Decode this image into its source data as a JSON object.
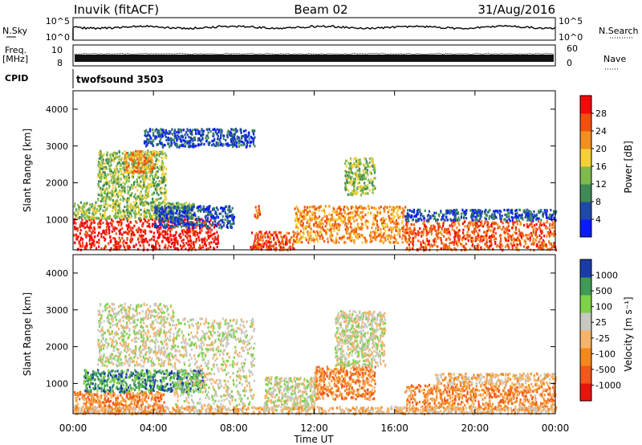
{
  "header": {
    "station": "Inuvik (fitACF)",
    "beam": "Beam 02",
    "date": "31/Aug/2016"
  },
  "status_panel": {
    "nsky_label": "N.Sky",
    "nsky_ticks": [
      "10^5",
      "10^0"
    ],
    "nsearch_label": "N.Search",
    "nsearch_ticks": [
      "10^5",
      "10^0"
    ],
    "freq_label_line1": "Freq.",
    "freq_label_line2": "[MHz]",
    "freq_ticks": [
      "10",
      "8"
    ],
    "nave_label": "Nave",
    "nave_ticks": [
      "60",
      "0"
    ],
    "cpid_label": "CPID",
    "cpid_value": "twofsound 3503"
  },
  "colors": {
    "power": [
      "#0a1cff",
      "#1f49a8",
      "#3f8a55",
      "#7fba4c",
      "#f5cf3a",
      "#f38f20",
      "#f2500f",
      "#f20b0b"
    ],
    "velocity": [
      "#e8140e",
      "#f0581c",
      "#f4881d",
      "#f6b46a",
      "#c8c8c0",
      "#7dd24a",
      "#3f9a58",
      "#1a3ca6"
    ]
  },
  "chart_data": [
    {
      "type": "heatmap",
      "title": "Power",
      "ylabel": "Slant Range [km]",
      "xlabel": "",
      "x_ticks": [
        "00:00",
        "04:00",
        "08:00",
        "12:00",
        "16:00",
        "20:00",
        "00:00"
      ],
      "xlim_hours": [
        0,
        24
      ],
      "y_ticks": [
        1000,
        2000,
        3000,
        4000
      ],
      "ylim_km": [
        180,
        4500
      ],
      "colorbar": {
        "label": "Power [dB]",
        "ticks": [
          "4",
          "8",
          "12",
          "16",
          "20",
          "24",
          "28"
        ],
        "range": [
          0,
          32
        ]
      },
      "regions": [
        {
          "t0": 0.0,
          "t1": 7.2,
          "r0": 200,
          "r1": 1050,
          "level": 7
        },
        {
          "t0": 0.0,
          "t1": 6.0,
          "r0": 1050,
          "r1": 1500,
          "level": 3
        },
        {
          "t0": 1.2,
          "t1": 4.6,
          "r0": 1500,
          "r1": 2900,
          "level": 3
        },
        {
          "t0": 2.5,
          "t1": 4.0,
          "r0": 2300,
          "r1": 2900,
          "level": 5
        },
        {
          "t0": 4.0,
          "t1": 8.0,
          "r0": 800,
          "r1": 1400,
          "level": 1
        },
        {
          "t0": 8.8,
          "t1": 11.0,
          "r0": 200,
          "r1": 700,
          "level": 6
        },
        {
          "t0": 11.0,
          "t1": 16.5,
          "r0": 400,
          "r1": 1400,
          "level": 5
        },
        {
          "t0": 13.5,
          "t1": 15.0,
          "r0": 1700,
          "r1": 2700,
          "level": 3
        },
        {
          "t0": 16.5,
          "t1": 24.0,
          "r0": 200,
          "r1": 1000,
          "level": 6
        },
        {
          "t0": 16.5,
          "t1": 24.0,
          "r0": 1000,
          "r1": 1300,
          "level": 1
        },
        {
          "t0": 3.5,
          "t1": 9.0,
          "r0": 3000,
          "r1": 3500,
          "level": 1
        },
        {
          "t0": 9.0,
          "t1": 9.3,
          "r0": 1000,
          "r1": 1400,
          "level": 6
        }
      ]
    },
    {
      "type": "heatmap",
      "title": "Velocity",
      "ylabel": "Slant Range [km]",
      "xlabel": "Time UT",
      "x_ticks": [
        "00:00",
        "04:00",
        "08:00",
        "12:00",
        "16:00",
        "20:00",
        "00:00"
      ],
      "xlim_hours": [
        0,
        24
      ],
      "y_ticks": [
        1000,
        2000,
        3000,
        4000
      ],
      "ylim_km": [
        180,
        4500
      ],
      "colorbar": {
        "label": "Velocity [m s⁻¹]",
        "ticks": [
          "-1000",
          "-500",
          "-100",
          "-25",
          "25",
          "100",
          "500",
          "1000"
        ],
        "range": [
          -1500,
          1500
        ]
      },
      "regions": [
        {
          "t0": 0.0,
          "t1": 4.5,
          "r0": 200,
          "r1": 800,
          "level": 2
        },
        {
          "t0": 0.5,
          "t1": 6.5,
          "r0": 800,
          "r1": 1400,
          "level": 6
        },
        {
          "t0": 1.2,
          "t1": 5.0,
          "r0": 1500,
          "r1": 3200,
          "level": 4
        },
        {
          "t0": 5.0,
          "t1": 9.0,
          "r0": 300,
          "r1": 2800,
          "level": 4
        },
        {
          "t0": 9.5,
          "t1": 12.0,
          "r0": 300,
          "r1": 1200,
          "level": 4
        },
        {
          "t0": 12.0,
          "t1": 15.0,
          "r0": 600,
          "r1": 1500,
          "level": 2
        },
        {
          "t0": 13.0,
          "t1": 15.5,
          "r0": 1500,
          "r1": 3000,
          "level": 4
        },
        {
          "t0": 16.5,
          "t1": 24.0,
          "r0": 300,
          "r1": 1000,
          "level": 2
        },
        {
          "t0": 18.0,
          "t1": 24.0,
          "r0": 1000,
          "r1": 1300,
          "level": 3
        },
        {
          "t0": 0.0,
          "t1": 24.0,
          "r0": 200,
          "r1": 400,
          "level": 3
        }
      ]
    }
  ]
}
